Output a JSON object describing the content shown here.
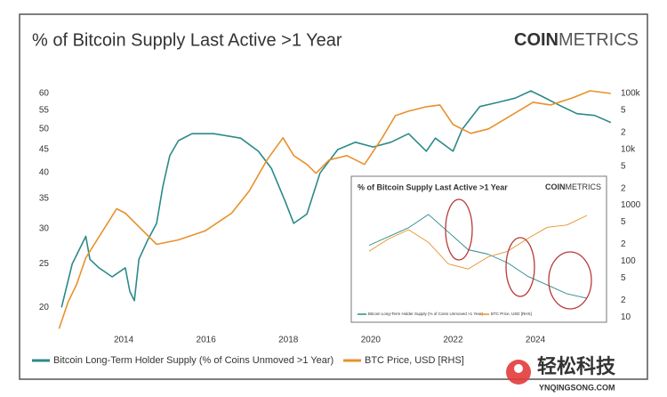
{
  "chart_data": [
    {
      "type": "line",
      "title": "% of Bitcoin Supply Last Active >1 Year",
      "brand_bold": "COIN",
      "brand_light": "METRICS",
      "xlim": [
        2012.4,
        2025.9
      ],
      "xticks": [
        2014,
        2016,
        2018,
        2020,
        2022,
        2024
      ],
      "ylim": [
        17.7,
        61.4
      ],
      "ylog": true,
      "yticks": [
        20,
        25,
        30,
        35,
        40,
        45,
        50,
        55,
        60
      ],
      "y2lim": [
        5.6,
        120000
      ],
      "y2log": true,
      "y2ticks": [
        {
          "value": 100000,
          "label": "100k"
        },
        {
          "value": 50000,
          "label": "5"
        },
        {
          "value": 20000,
          "label": "2"
        },
        {
          "value": 10000,
          "label": "10k"
        },
        {
          "value": 5000,
          "label": "5"
        },
        {
          "value": 2000,
          "label": "2"
        },
        1000,
        {
          "value": 500,
          "label": "5"
        },
        {
          "value": 200,
          "label": "2"
        },
        100,
        {
          "value": 50,
          "label": "5"
        },
        {
          "value": 20,
          "label": "2"
        },
        10
      ],
      "series": [
        {
          "name": "Bitcoin Long-Term Holder Supply (% of Coins Unmoved >1 Year)",
          "color": "#2b8a89",
          "x": [
            2012.49,
            2012.75,
            2013.08,
            2013.18,
            2013.4,
            2013.72,
            2014.04,
            2014.15,
            2014.26,
            2014.37,
            2014.58,
            2014.8,
            2014.95,
            2015.12,
            2015.33,
            2015.66,
            2016.19,
            2016.84,
            2017.27,
            2017.59,
            2017.91,
            2018.13,
            2018.45,
            2018.77,
            2019.2,
            2019.63,
            2020.06,
            2020.49,
            2020.92,
            2021.35,
            2021.57,
            2022.0,
            2022.22,
            2022.65,
            2023.08,
            2023.51,
            2023.89,
            2024.15,
            2024.58,
            2025.01,
            2025.44,
            2025.83
          ],
          "values": [
            20.0,
            25.0,
            28.8,
            25.6,
            24.5,
            23.4,
            24.5,
            21.7,
            20.7,
            25.6,
            28.2,
            30.8,
            37.2,
            43.6,
            47.1,
            48.8,
            48.8,
            47.7,
            44.6,
            40.8,
            34.7,
            30.8,
            32.3,
            39.9,
            45.0,
            46.7,
            45.6,
            46.7,
            48.8,
            44.6,
            47.7,
            44.6,
            49.9,
            56.1,
            57.3,
            58.6,
            60.8,
            59.2,
            56.5,
            54.1,
            53.6,
            51.7
          ]
        },
        {
          "name": "BTC Price, USD [RHS]",
          "color": "#e8912b",
          "axis": "y2",
          "x": [
            2012.43,
            2012.65,
            2012.86,
            2013.08,
            2013.83,
            2014.04,
            2014.8,
            2015.33,
            2015.98,
            2016.62,
            2017.05,
            2017.48,
            2017.87,
            2018.13,
            2018.45,
            2018.67,
            2018.99,
            2019.42,
            2019.85,
            2020.28,
            2020.6,
            2020.92,
            2021.35,
            2021.68,
            2022.0,
            2022.43,
            2022.86,
            2023.4,
            2023.94,
            2024.37,
            2024.9,
            2025.33,
            2025.83
          ],
          "values": [
            6.2,
            18.6,
            39,
            115,
            865,
            720,
            200,
            240,
            347,
            720,
            1800,
            6450,
            16100,
            7740,
            5370,
            3730,
            6450,
            7740,
            5370,
            16100,
            40100,
            48200,
            57800,
            62200,
            27800,
            19300,
            23200,
            40100,
            69400,
            62200,
            83300,
            111600,
            100000
          ]
        }
      ]
    },
    {
      "type": "line",
      "title": "% of Bitcoin Supply Last Active >1 Year",
      "brand_bold": "COIN",
      "brand_light": "METRICS",
      "ylim": [
        40,
        64
      ],
      "y2lim": [
        5000,
        150000
      ],
      "y2log": true,
      "series": [
        {
          "name": "Bitcoin Long-Term Holder Supply (% of Coins Unmoved >1 Year)",
          "color": "#2b8a89",
          "values": [
            54,
            56,
            58,
            61,
            57,
            53,
            52,
            50,
            47,
            45,
            43,
            42
          ]
        },
        {
          "name": "BTC Price, USD [RHS]",
          "color": "#e8912b",
          "axis": "y2",
          "values": [
            30000,
            45000,
            60000,
            40000,
            20000,
            17000,
            25000,
            30000,
            45000,
            65000,
            70000,
            95000
          ]
        }
      ]
    }
  ],
  "watermark": {
    "text": "轻松科技",
    "url": "YNQINGSONG.COM"
  }
}
